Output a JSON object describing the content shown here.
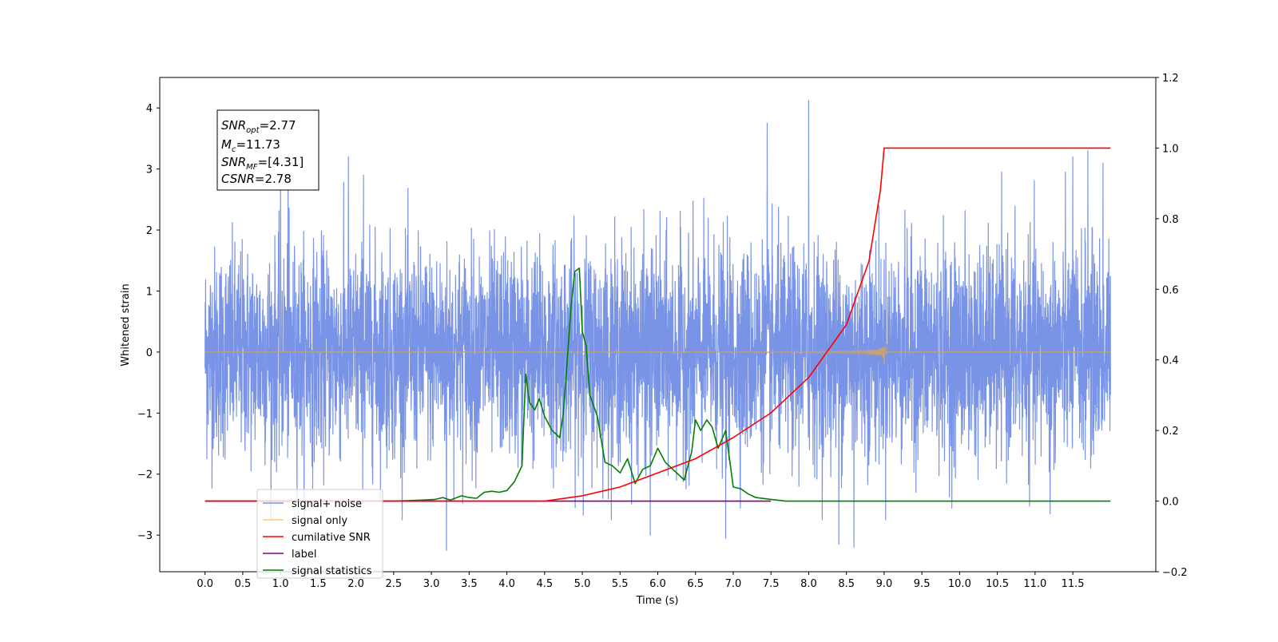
{
  "chart_data": {
    "type": "line",
    "xlabel": "Time (s)",
    "ylabel": "Whitened strain",
    "xlim": [
      -0.6,
      12.6
    ],
    "ylim": [
      -3.6,
      4.5
    ],
    "y2lim": [
      -0.2,
      1.2
    ],
    "x_ticks": [
      "0.0",
      "0.5",
      "1.0",
      "1.5",
      "2.0",
      "2.5",
      "3.0",
      "3.5",
      "4.0",
      "4.5",
      "5.0",
      "5.5",
      "6.0",
      "6.5",
      "7.0",
      "7.5",
      "8.0",
      "8.5",
      "9.0",
      "9.5",
      "10.0",
      "10.5",
      "11.0",
      "11.5"
    ],
    "y_ticks": [
      "4",
      "3",
      "2",
      "1",
      "0",
      "−1",
      "−2",
      "−3"
    ],
    "y2_ticks": [
      "1.2",
      "1.0",
      "0.8",
      "0.6",
      "0.4",
      "0.2",
      "0.0",
      "−0.2"
    ],
    "grid": false,
    "legend_placement": "lower-left",
    "annotation": {
      "line1": "=2.77",
      "line2": "=11.73",
      "line3": "=[4.31]",
      "line4": "=2.78"
    },
    "series": [
      {
        "name": "signal+ noise",
        "axis": "left",
        "color": "#7994e6",
        "x_range": [
          0.0,
          12.0
        ],
        "noise_level": 0.85,
        "peaks": [
          {
            "x": 1.0,
            "y": 2.8
          },
          {
            "x": 1.1,
            "y": 3.0
          },
          {
            "x": 1.9,
            "y": 3.2
          },
          {
            "x": 2.1,
            "y": 2.9
          },
          {
            "x": 3.2,
            "y": 3.3
          },
          {
            "x": 6.9,
            "y": 3.0
          },
          {
            "x": 7.45,
            "y": 3.75
          },
          {
            "x": 8.0,
            "y": 4.12
          },
          {
            "x": 11.5,
            "y": 3.2
          },
          {
            "x": 11.7,
            "y": 3.3
          },
          {
            "x": 11.9,
            "y": 3.1
          }
        ],
        "troughs": [
          {
            "x": 3.2,
            "y": -3.25
          },
          {
            "x": 5.9,
            "y": -3.0
          },
          {
            "x": 6.9,
            "y": -3.05
          },
          {
            "x": 8.4,
            "y": -3.15
          },
          {
            "x": 8.6,
            "y": -3.2
          },
          {
            "x": 11.2,
            "y": -2.65
          }
        ]
      },
      {
        "name": "signal only",
        "axis": "left",
        "color": "#c8a173",
        "chirp_end": 9.0,
        "max_amplitude": 0.48
      },
      {
        "name": "cumilative SNR",
        "axis": "right",
        "color": "#ff0000",
        "points": [
          [
            0.0,
            0.0
          ],
          [
            4.5,
            0.0
          ],
          [
            5.0,
            0.015
          ],
          [
            5.5,
            0.04
          ],
          [
            6.0,
            0.08
          ],
          [
            6.5,
            0.12
          ],
          [
            7.0,
            0.18
          ],
          [
            7.5,
            0.25
          ],
          [
            8.0,
            0.35
          ],
          [
            8.5,
            0.5
          ],
          [
            8.8,
            0.68
          ],
          [
            8.95,
            0.88
          ],
          [
            9.0,
            1.0
          ],
          [
            12.0,
            1.0
          ]
        ]
      },
      {
        "name": "label",
        "axis": "right",
        "color": "#800080",
        "points": [
          [
            0.0,
            0.0
          ],
          [
            7.5,
            0.0
          ]
        ]
      },
      {
        "name": "signal statistics",
        "axis": "right",
        "color": "#008000",
        "points": [
          [
            0.0,
            0.0
          ],
          [
            2.5,
            0.0
          ],
          [
            2.9,
            0.003
          ],
          [
            3.05,
            0.005
          ],
          [
            3.15,
            0.01
          ],
          [
            3.25,
            0.003
          ],
          [
            3.4,
            0.015
          ],
          [
            3.5,
            0.01
          ],
          [
            3.6,
            0.008
          ],
          [
            3.7,
            0.025
          ],
          [
            3.8,
            0.028
          ],
          [
            3.9,
            0.025
          ],
          [
            4.0,
            0.03
          ],
          [
            4.1,
            0.055
          ],
          [
            4.2,
            0.1
          ],
          [
            4.25,
            0.36
          ],
          [
            4.3,
            0.28
          ],
          [
            4.37,
            0.258
          ],
          [
            4.43,
            0.29
          ],
          [
            4.5,
            0.24
          ],
          [
            4.6,
            0.2
          ],
          [
            4.7,
            0.18
          ],
          [
            4.75,
            0.25
          ],
          [
            4.85,
            0.55
          ],
          [
            4.9,
            0.65
          ],
          [
            4.96,
            0.66
          ],
          [
            5.0,
            0.48
          ],
          [
            5.05,
            0.44
          ],
          [
            5.1,
            0.3
          ],
          [
            5.2,
            0.24
          ],
          [
            5.3,
            0.11
          ],
          [
            5.4,
            0.1
          ],
          [
            5.5,
            0.08
          ],
          [
            5.6,
            0.12
          ],
          [
            5.7,
            0.05
          ],
          [
            5.8,
            0.09
          ],
          [
            5.9,
            0.1
          ],
          [
            6.0,
            0.15
          ],
          [
            6.1,
            0.11
          ],
          [
            6.2,
            0.09
          ],
          [
            6.35,
            0.06
          ],
          [
            6.45,
            0.14
          ],
          [
            6.5,
            0.23
          ],
          [
            6.57,
            0.2
          ],
          [
            6.65,
            0.23
          ],
          [
            6.72,
            0.21
          ],
          [
            6.8,
            0.15
          ],
          [
            6.9,
            0.2
          ],
          [
            7.0,
            0.04
          ],
          [
            7.1,
            0.035
          ],
          [
            7.2,
            0.02
          ],
          [
            7.3,
            0.01
          ],
          [
            7.5,
            0.005
          ],
          [
            7.7,
            0.0
          ],
          [
            12.0,
            0.0
          ]
        ]
      }
    ]
  }
}
